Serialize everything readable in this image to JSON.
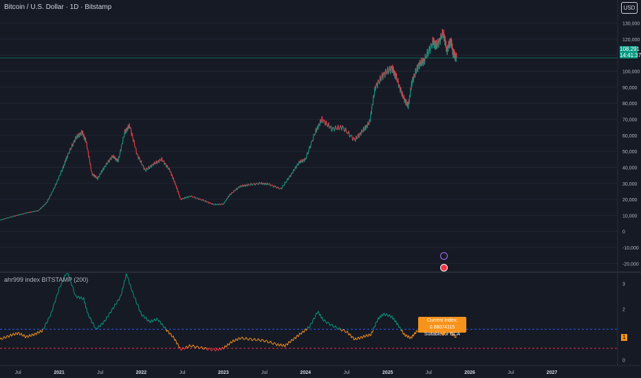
{
  "header": {
    "title": "Bitcoin / U.S. Dollar · 1D · Bitstamp",
    "currency": "USD"
  },
  "price_badge": {
    "price": "108,291",
    "countdown": "14:41:37",
    "color": "#089981"
  },
  "indicator": {
    "title": "ahr999 index BITSTAMP (200)",
    "tooltip_line1": "Current Index: 0.88074115",
    "tooltip_line2": "Suitable for DCA",
    "badge": "1"
  },
  "icons": [
    "flag-icon",
    "reset-icon"
  ],
  "chart_data": [
    {
      "type": "line",
      "name": "price",
      "ylim": [
        -25000,
        135000
      ],
      "y_ticks": [
        130000,
        120000,
        110000,
        100000,
        90000,
        80000,
        70000,
        60000,
        50000,
        40000,
        30000,
        20000,
        10000,
        0,
        -10000,
        -20000
      ],
      "y_tick_labels": [
        "130,000",
        "120,000",
        "",
        "100,000",
        "90,000",
        "80,000",
        "70,000",
        "60,000",
        "50,000",
        "40,000",
        "30,000",
        "20,000",
        "10,000",
        "0",
        "-10,000",
        "-20,000"
      ],
      "x_ticks": [
        2020.5,
        2021.0,
        2021.5,
        2022.0,
        2022.5,
        2023.0,
        2023.5,
        2024.0,
        2024.5,
        2025.0,
        2025.5,
        2026.0,
        2026.5,
        2027.0
      ],
      "x_tick_labels": [
        "Jul",
        "2021",
        "Jul",
        "2022",
        "Jul",
        "2023",
        "Jul",
        "2024",
        "Jul",
        "2025",
        "Jul",
        "2026",
        "Jul",
        "2027"
      ],
      "xlim": [
        2020.28,
        2027.8
      ],
      "last_price": 108291,
      "points": [
        [
          2020.28,
          7000
        ],
        [
          2020.45,
          9500
        ],
        [
          2020.6,
          11500
        ],
        [
          2020.75,
          13000
        ],
        [
          2020.85,
          18000
        ],
        [
          2020.95,
          28000
        ],
        [
          2021.05,
          40000
        ],
        [
          2021.1,
          47000
        ],
        [
          2021.2,
          58000
        ],
        [
          2021.28,
          62000
        ],
        [
          2021.33,
          56000
        ],
        [
          2021.4,
          36000
        ],
        [
          2021.47,
          33000
        ],
        [
          2021.55,
          40000
        ],
        [
          2021.65,
          47000
        ],
        [
          2021.72,
          44000
        ],
        [
          2021.8,
          62000
        ],
        [
          2021.86,
          66000
        ],
        [
          2021.95,
          48000
        ],
        [
          2022.05,
          38000
        ],
        [
          2022.15,
          42000
        ],
        [
          2022.25,
          45000
        ],
        [
          2022.35,
          38000
        ],
        [
          2022.42,
          29000
        ],
        [
          2022.48,
          20000
        ],
        [
          2022.6,
          22000
        ],
        [
          2022.75,
          19500
        ],
        [
          2022.88,
          16800
        ],
        [
          2023.0,
          17000
        ],
        [
          2023.08,
          23000
        ],
        [
          2023.2,
          28000
        ],
        [
          2023.3,
          29000
        ],
        [
          2023.45,
          30000
        ],
        [
          2023.55,
          29500
        ],
        [
          2023.7,
          26500
        ],
        [
          2023.82,
          35000
        ],
        [
          2023.92,
          43000
        ],
        [
          2024.0,
          45000
        ],
        [
          2024.12,
          62000
        ],
        [
          2024.2,
          70000
        ],
        [
          2024.32,
          64000
        ],
        [
          2024.45,
          65000
        ],
        [
          2024.6,
          57000
        ],
        [
          2024.7,
          63000
        ],
        [
          2024.78,
          68000
        ],
        [
          2024.85,
          90000
        ],
        [
          2024.95,
          98000
        ],
        [
          2025.05,
          102000
        ],
        [
          2025.1,
          97000
        ],
        [
          2025.18,
          85000
        ],
        [
          2025.25,
          78000
        ],
        [
          2025.3,
          94000
        ],
        [
          2025.38,
          104000
        ],
        [
          2025.45,
          107000
        ],
        [
          2025.55,
          118000
        ],
        [
          2025.6,
          116000
        ],
        [
          2025.68,
          124000
        ],
        [
          2025.72,
          113000
        ],
        [
          2025.77,
          119000
        ],
        [
          2025.8,
          111000
        ],
        [
          2025.84,
          108291
        ]
      ]
    },
    {
      "type": "line",
      "name": "ahr999",
      "ylim": [
        -0.1,
        3.4
      ],
      "y_ticks": [
        3,
        2,
        1,
        0
      ],
      "y_tick_labels": [
        "3",
        "2",
        "",
        "0"
      ],
      "thresholds": [
        {
          "value": 1.2,
          "color": "#2962ff"
        },
        {
          "value": 0.45,
          "color": "#f23645"
        }
      ],
      "colors": {
        "above": "#089981",
        "mid": "#f7931a",
        "below": "#f23645"
      },
      "points": [
        [
          2020.28,
          0.8
        ],
        [
          2020.4,
          0.95
        ],
        [
          2020.5,
          1.05
        ],
        [
          2020.6,
          0.9
        ],
        [
          2020.7,
          1.0
        ],
        [
          2020.8,
          1.15
        ],
        [
          2020.9,
          1.8
        ],
        [
          2021.0,
          2.8
        ],
        [
          2021.1,
          3.5
        ],
        [
          2021.2,
          2.5
        ],
        [
          2021.3,
          2.4
        ],
        [
          2021.35,
          1.8
        ],
        [
          2021.45,
          1.2
        ],
        [
          2021.55,
          1.5
        ],
        [
          2021.65,
          2.0
        ],
        [
          2021.75,
          2.5
        ],
        [
          2021.82,
          3.4
        ],
        [
          2021.9,
          2.6
        ],
        [
          2022.0,
          1.8
        ],
        [
          2022.1,
          1.5
        ],
        [
          2022.2,
          1.6
        ],
        [
          2022.3,
          1.2
        ],
        [
          2022.4,
          0.85
        ],
        [
          2022.48,
          0.4
        ],
        [
          2022.6,
          0.55
        ],
        [
          2022.75,
          0.45
        ],
        [
          2022.9,
          0.38
        ],
        [
          2023.0,
          0.45
        ],
        [
          2023.1,
          0.7
        ],
        [
          2023.2,
          0.85
        ],
        [
          2023.35,
          0.8
        ],
        [
          2023.5,
          0.75
        ],
        [
          2023.65,
          0.6
        ],
        [
          2023.75,
          0.55
        ],
        [
          2023.85,
          0.8
        ],
        [
          2023.95,
          1.05
        ],
        [
          2024.05,
          1.3
        ],
        [
          2024.15,
          1.9
        ],
        [
          2024.22,
          1.55
        ],
        [
          2024.35,
          1.3
        ],
        [
          2024.5,
          1.1
        ],
        [
          2024.6,
          0.8
        ],
        [
          2024.7,
          0.9
        ],
        [
          2024.8,
          1.0
        ],
        [
          2024.88,
          1.6
        ],
        [
          2024.95,
          1.8
        ],
        [
          2025.05,
          1.7
        ],
        [
          2025.12,
          1.4
        ],
        [
          2025.2,
          1.0
        ],
        [
          2025.28,
          0.85
        ],
        [
          2025.35,
          1.1
        ],
        [
          2025.45,
          1.3
        ],
        [
          2025.55,
          1.4
        ],
        [
          2025.65,
          1.3
        ],
        [
          2025.75,
          1.1
        ],
        [
          2025.84,
          0.88
        ]
      ]
    }
  ]
}
